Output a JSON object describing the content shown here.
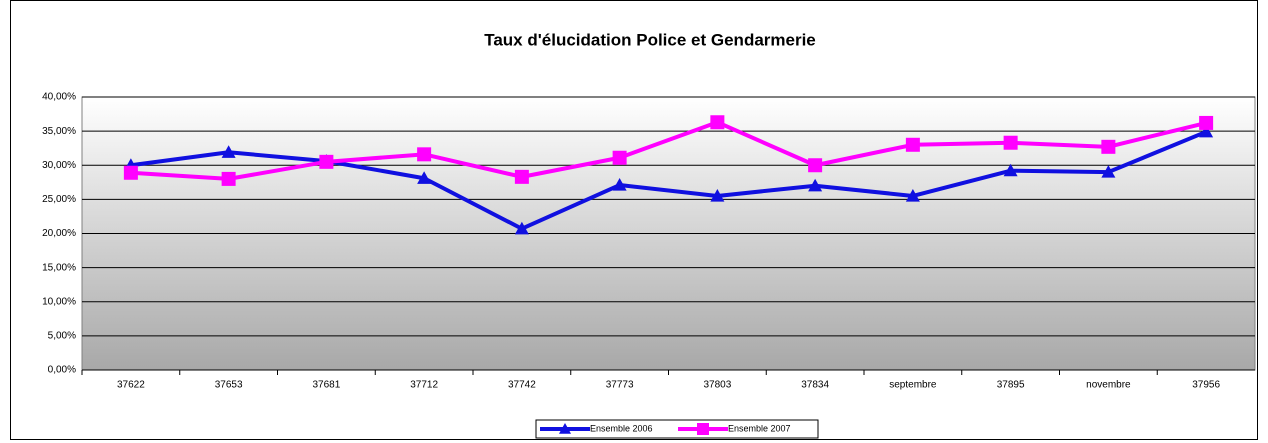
{
  "chart_data": {
    "type": "line",
    "title": "Taux d'élucidation Police et Gendarmerie",
    "categories": [
      "37622",
      "37653",
      "37681",
      "37712",
      "37742",
      "37773",
      "37803",
      "37834",
      "septembre",
      "37895",
      "novembre",
      "37956"
    ],
    "series": [
      {
        "name": "Ensemble 2006",
        "color": "#1010e0",
        "marker": "triangle",
        "values": [
          30.0,
          31.9,
          30.6,
          28.1,
          20.7,
          27.1,
          25.5,
          27.0,
          25.5,
          29.2,
          29.0,
          34.9
        ]
      },
      {
        "name": "Ensemble 2007",
        "color": "#ff00ff",
        "marker": "square",
        "values": [
          28.9,
          28.0,
          30.5,
          31.6,
          28.3,
          31.1,
          36.3,
          30.0,
          33.0,
          33.3,
          32.7,
          36.2
        ]
      }
    ],
    "ylim": [
      0,
      40
    ],
    "yticks": [
      {
        "value": 0,
        "label": "0,00%"
      },
      {
        "value": 5,
        "label": "5,00%"
      },
      {
        "value": 10,
        "label": "10,00%"
      },
      {
        "value": 15,
        "label": "15,00%"
      },
      {
        "value": 20,
        "label": "20,00%"
      },
      {
        "value": 25,
        "label": "25,00%"
      },
      {
        "value": 30,
        "label": "30,00%"
      },
      {
        "value": 35,
        "label": "35,00%"
      },
      {
        "value": 40,
        "label": "40,00%"
      }
    ],
    "grid": true,
    "legend": "bottom"
  }
}
